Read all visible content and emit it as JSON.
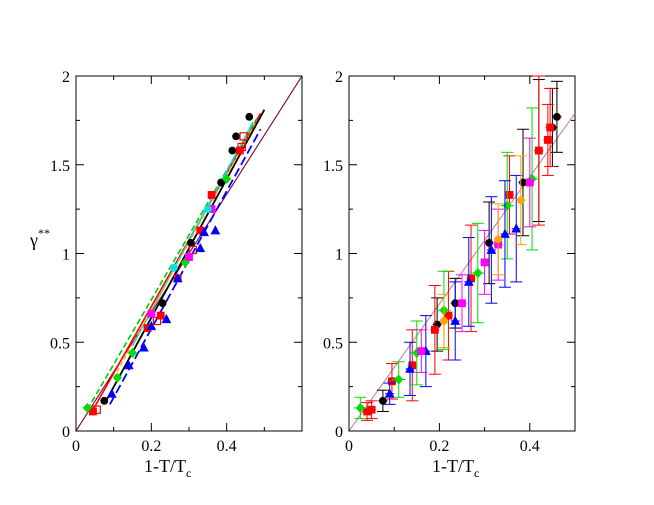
{
  "chart_data": [
    {
      "type": "scatter",
      "panel": "left",
      "title": "",
      "xlabel": {
        "main": "1-T/T",
        "sub": "c"
      },
      "ylabel": {
        "main": "γ",
        "sup": "**"
      },
      "xlim": [
        0,
        0.6
      ],
      "ylim": [
        0,
        2
      ],
      "xticks": [
        0,
        0.2,
        0.4
      ],
      "xtick_labels": [
        "0",
        "0.2",
        "0.4"
      ],
      "yticks": [
        0,
        0.5,
        1,
        1.5,
        2
      ],
      "ytick_labels": [
        "0",
        "0.5",
        "1",
        "1.5",
        "2"
      ],
      "lines": [
        {
          "name": "reference",
          "color": "#800040",
          "width": 1.1,
          "dash": "",
          "x": [
            0,
            0.6
          ],
          "y": [
            0,
            2.0
          ]
        },
        {
          "name": "black-fit",
          "color": "#000000",
          "width": 1.8,
          "dash": "",
          "x": [
            0.08,
            0.5
          ],
          "y": [
            0.17,
            1.81
          ]
        },
        {
          "name": "red-fit",
          "color": "#ff0000",
          "width": 1.6,
          "dash": "",
          "x": [
            0.04,
            0.49
          ],
          "y": [
            0.1,
            1.79
          ]
        },
        {
          "name": "green-fit",
          "color": "#00cc00",
          "width": 1.6,
          "dash": "6,3",
          "x": [
            0.03,
            0.48
          ],
          "y": [
            0.12,
            1.76
          ]
        },
        {
          "name": "blue-fit",
          "color": "#0000ff",
          "width": 1.8,
          "dash": "9,4",
          "x": [
            0.09,
            0.49
          ],
          "y": [
            0.15,
            1.7
          ]
        },
        {
          "name": "cyan-fit",
          "color": "#00e5e5",
          "width": 1.5,
          "dash": "",
          "x": [
            0.15,
            0.47
          ],
          "y": [
            0.48,
            1.74
          ]
        },
        {
          "name": "orange-fit",
          "color": "#ffa500",
          "width": 1.3,
          "dash": "4,3",
          "x": [
            0.1,
            0.48
          ],
          "y": [
            0.3,
            1.75
          ]
        }
      ],
      "series": [
        {
          "name": "black",
          "marker": "circle",
          "fill": "#000000",
          "stroke": "#000000",
          "x": [
            0.075,
            0.23,
            0.305,
            0.385,
            0.415,
            0.425,
            0.46
          ],
          "y": [
            0.17,
            0.72,
            1.06,
            1.4,
            1.58,
            1.66,
            1.77
          ]
        },
        {
          "name": "red-filled",
          "marker": "square",
          "fill": "#ff0000",
          "stroke": "#ff0000",
          "x": [
            0.045,
            0.19,
            0.225,
            0.27,
            0.33,
            0.36,
            0.435
          ],
          "y": [
            0.11,
            0.58,
            0.65,
            0.86,
            1.13,
            1.33,
            1.58
          ]
        },
        {
          "name": "red-open",
          "marker": "square",
          "fill": "none",
          "stroke": "#ff0000",
          "x": [
            0.055,
            0.215,
            0.31,
            0.44,
            0.445
          ],
          "y": [
            0.12,
            0.62,
            1.02,
            1.6,
            1.66
          ]
        },
        {
          "name": "green",
          "marker": "diamond",
          "fill": "#00dd00",
          "stroke": "#00dd00",
          "x": [
            0.03,
            0.11,
            0.15,
            0.29,
            0.4
          ],
          "y": [
            0.13,
            0.3,
            0.44,
            0.95,
            1.42
          ]
        },
        {
          "name": "blue",
          "marker": "triangle",
          "fill": "#0000ff",
          "stroke": "#0000ff",
          "x": [
            0.095,
            0.14,
            0.18,
            0.2,
            0.24,
            0.27,
            0.33,
            0.34,
            0.37
          ],
          "y": [
            0.21,
            0.37,
            0.47,
            0.59,
            0.63,
            0.86,
            1.03,
            1.12,
            1.13
          ]
        },
        {
          "name": "magenta",
          "marker": "square",
          "fill": "#ff00ff",
          "stroke": "#ff00ff",
          "x": [
            0.2,
            0.3,
            0.36
          ],
          "y": [
            0.66,
            0.98,
            1.25
          ]
        },
        {
          "name": "cyan",
          "marker": "circle",
          "fill": "#00e5e5",
          "stroke": "#00e5e5",
          "x": [
            0.26,
            0.35
          ],
          "y": [
            0.92,
            1.25
          ]
        }
      ]
    },
    {
      "type": "scatter",
      "panel": "right",
      "title": "",
      "xlabel": {
        "main": "1-T/T",
        "sub": "c"
      },
      "ylabel": null,
      "xlim": [
        0,
        0.5
      ],
      "ylim": [
        0,
        2
      ],
      "xticks": [
        0,
        0.2,
        0.4
      ],
      "xtick_labels": [
        "0",
        "0.2",
        "0.4"
      ],
      "yticks": [
        0,
        0.5,
        1,
        1.5,
        2
      ],
      "ytick_labels": [
        "0",
        "0.5",
        "1",
        "1.5",
        "2"
      ],
      "lines": [
        {
          "name": "reference",
          "color": "#c08898",
          "width": 1.1,
          "dash": "",
          "x": [
            0,
            0.5
          ],
          "y": [
            0,
            1.79
          ]
        }
      ],
      "series": [
        {
          "name": "black",
          "marker": "circle",
          "fill": "#000000",
          "stroke": "#000000",
          "x": [
            0.075,
            0.195,
            0.235,
            0.31,
            0.385,
            0.42,
            0.45,
            0.46
          ],
          "y": [
            0.17,
            0.6,
            0.72,
            1.06,
            1.4,
            1.58,
            1.71,
            1.77
          ],
          "yerr": [
            0.06,
            0.15,
            0.14,
            0.23,
            0.3,
            0.4,
            0.22,
            0.2
          ],
          "xerr": [
            0.01,
            0.01,
            0.01,
            0.01,
            0.01,
            0.01,
            0.01,
            0.01
          ]
        },
        {
          "name": "red",
          "marker": "square",
          "fill": "#ff0000",
          "stroke": "#ff0000",
          "x": [
            0.04,
            0.05,
            0.095,
            0.14,
            0.19,
            0.22,
            0.27,
            0.355,
            0.42,
            0.44,
            0.445
          ],
          "y": [
            0.11,
            0.12,
            0.28,
            0.37,
            0.57,
            0.65,
            0.86,
            1.33,
            1.58,
            1.64,
            1.71
          ],
          "yerr": [
            0.05,
            0.05,
            0.1,
            0.2,
            0.25,
            0.25,
            0.3,
            0.22,
            0.42,
            0.2,
            0.22
          ],
          "xerr": [
            0.01,
            0.01,
            0.01,
            0.01,
            0.01,
            0.01,
            0.01,
            0.01,
            0.01,
            0.01,
            0.01
          ]
        },
        {
          "name": "green",
          "marker": "diamond",
          "fill": "#00dd00",
          "stroke": "#00dd00",
          "x": [
            0.025,
            0.11,
            0.15,
            0.21,
            0.285,
            0.35,
            0.405
          ],
          "y": [
            0.13,
            0.29,
            0.44,
            0.68,
            0.89,
            1.27,
            1.42
          ],
          "yerr": [
            0.06,
            0.1,
            0.18,
            0.22,
            0.28,
            0.3,
            0.4
          ],
          "xerr": [
            0.015,
            0.015,
            0.015,
            0.015,
            0.015,
            0.015,
            0.015
          ]
        },
        {
          "name": "blue",
          "marker": "triangle",
          "fill": "#0000ff",
          "stroke": "#0000ff",
          "x": [
            0.09,
            0.135,
            0.17,
            0.235,
            0.265,
            0.315,
            0.345,
            0.37
          ],
          "y": [
            0.21,
            0.35,
            0.45,
            0.62,
            0.84,
            1.02,
            1.11,
            1.14
          ],
          "yerr": [
            0.06,
            0.15,
            0.2,
            0.22,
            0.25,
            0.3,
            0.3,
            0.3
          ],
          "xerr": [
            0.01,
            0.01,
            0.01,
            0.01,
            0.01,
            0.01,
            0.01,
            0.01
          ]
        },
        {
          "name": "magenta",
          "marker": "square",
          "fill": "#ff00ff",
          "stroke": "#ff00ff",
          "x": [
            0.16,
            0.25,
            0.3,
            0.33,
            0.4
          ],
          "y": [
            0.45,
            0.72,
            0.95,
            1.05,
            1.4
          ],
          "yerr": [
            0.12,
            0.16,
            0.18,
            0.2,
            0.25
          ],
          "xerr": [
            0.01,
            0.01,
            0.01,
            0.01,
            0.01
          ]
        },
        {
          "name": "orange",
          "marker": "circle",
          "fill": "#ffa500",
          "stroke": "#ffa500",
          "x": [
            0.21,
            0.33,
            0.38
          ],
          "y": [
            0.62,
            1.08,
            1.3
          ],
          "yerr": [
            0.15,
            0.2,
            0.25
          ],
          "xerr": [
            0.01,
            0.01,
            0.01
          ]
        }
      ]
    }
  ]
}
